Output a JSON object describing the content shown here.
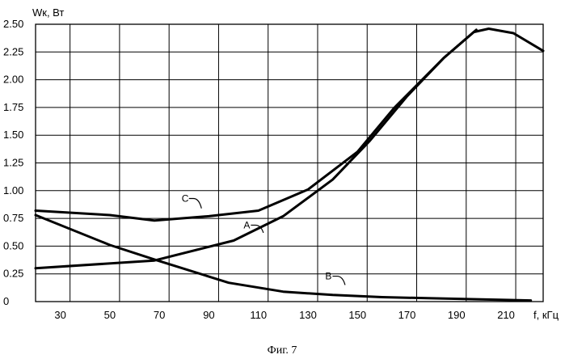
{
  "chart_data": {
    "type": "line",
    "ylabel": "Wк, Вт",
    "xlabel": "f, кГц",
    "caption": "Фиг. 7",
    "xlim": [
      20,
      225
    ],
    "ylim": [
      0,
      2.5
    ],
    "x_ticks": [
      30,
      50,
      70,
      90,
      110,
      130,
      150,
      170,
      190,
      210
    ],
    "y_ticks": [
      "0",
      "0.25",
      "0.50",
      "0.75",
      "1.00",
      "1.25",
      "1.50",
      "1.75",
      "2.00",
      "2.25",
      "2.50"
    ],
    "grid": true,
    "series": [
      {
        "name": "A",
        "x": [
          20,
          68,
          100,
          120,
          140,
          155,
          170,
          185,
          198
        ],
        "y": [
          0.3,
          0.37,
          0.55,
          0.77,
          1.1,
          1.45,
          1.85,
          2.2,
          2.45
        ]
      },
      {
        "name": "B",
        "x": [
          20,
          50,
          68,
          98,
          120,
          140,
          160,
          180,
          200,
          220
        ],
        "y": [
          0.78,
          0.51,
          0.38,
          0.17,
          0.09,
          0.06,
          0.04,
          0.03,
          0.02,
          0.01
        ]
      },
      {
        "name": "C",
        "x": [
          20,
          50,
          68,
          90,
          110,
          130,
          150,
          165,
          185,
          197,
          203,
          213,
          225
        ],
        "y": [
          0.82,
          0.78,
          0.73,
          0.77,
          0.82,
          1.01,
          1.35,
          1.75,
          2.2,
          2.43,
          2.46,
          2.42,
          2.26
        ]
      }
    ],
    "labels": [
      {
        "text": "A",
        "x": 104,
        "y": 0.66,
        "target_x": 112,
        "target_y": 0.62
      },
      {
        "text": "B",
        "x": 137,
        "y": 0.2,
        "target_x": 145,
        "target_y": 0.15
      },
      {
        "text": "C",
        "x": 79,
        "y": 0.9,
        "target_x": 87,
        "target_y": 0.84
      }
    ]
  }
}
